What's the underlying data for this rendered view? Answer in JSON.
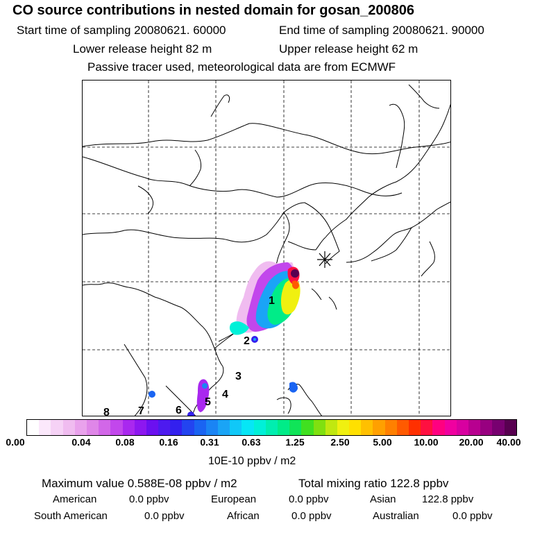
{
  "header": {
    "title": "CO  source contributions in nested domain for gosan_200806",
    "start_time": "Start time of sampling 20080621. 60000",
    "end_time": "End time of sampling 20080621. 90000",
    "lower_release": "Lower release height   82 m",
    "upper_release": "Upper release height   62 m",
    "tracer_note": "Passive tracer used, meteorological data are from ECMWF"
  },
  "map": {
    "region_labels": [
      "1",
      "2",
      "3",
      "4",
      "5",
      "6",
      "7",
      "8"
    ],
    "receptor_marker": "receptor-asterisk"
  },
  "colorbar": {
    "colors": [
      "#ffffff",
      "#fbe8fb",
      "#f6d2f6",
      "#f0bcf0",
      "#e9a2ec",
      "#df86e8",
      "#d267e8",
      "#c247ec",
      "#a928ef",
      "#8d17f0",
      "#6b10f0",
      "#4d1aef",
      "#3320ee",
      "#2344f0",
      "#1a64f2",
      "#1a84f4",
      "#1aa4f6",
      "#10c8f8",
      "#06e6f6",
      "#00f0d8",
      "#00eeb0",
      "#00ec88",
      "#10e458",
      "#40e020",
      "#80e010",
      "#c0e810",
      "#f0f010",
      "#ffe000",
      "#ffc000",
      "#ffa000",
      "#ff8000",
      "#ff5a00",
      "#ff3000",
      "#ff1040",
      "#ff0080",
      "#f000a0",
      "#d800a0",
      "#b80090",
      "#980080",
      "#780070",
      "#580050"
    ],
    "tick_labels": [
      "0.00",
      "0.04",
      "0.08",
      "0.16",
      "0.31",
      "0.63",
      "1.25",
      "2.50",
      "5.00",
      "10.00",
      "20.00",
      "40.00"
    ],
    "units": "10E-10 ppbv / m2"
  },
  "stats": {
    "max_value": "Maximum value  0.588E-08 ppbv / m2",
    "total_mixing_ratio": "Total mixing ratio     122.8 ppbv",
    "american_label": "American",
    "american_value": "0.0 ppbv",
    "european_label": "European",
    "european_value": "0.0 ppbv",
    "asian_label": "Asian",
    "asian_value": "122.8 ppbv",
    "south_american_label": "South American",
    "south_american_value": "0.0 ppbv",
    "african_label": "African",
    "african_value": "0.0 ppbv",
    "australian_label": "Australian",
    "australian_value": "0.0 ppbv"
  }
}
